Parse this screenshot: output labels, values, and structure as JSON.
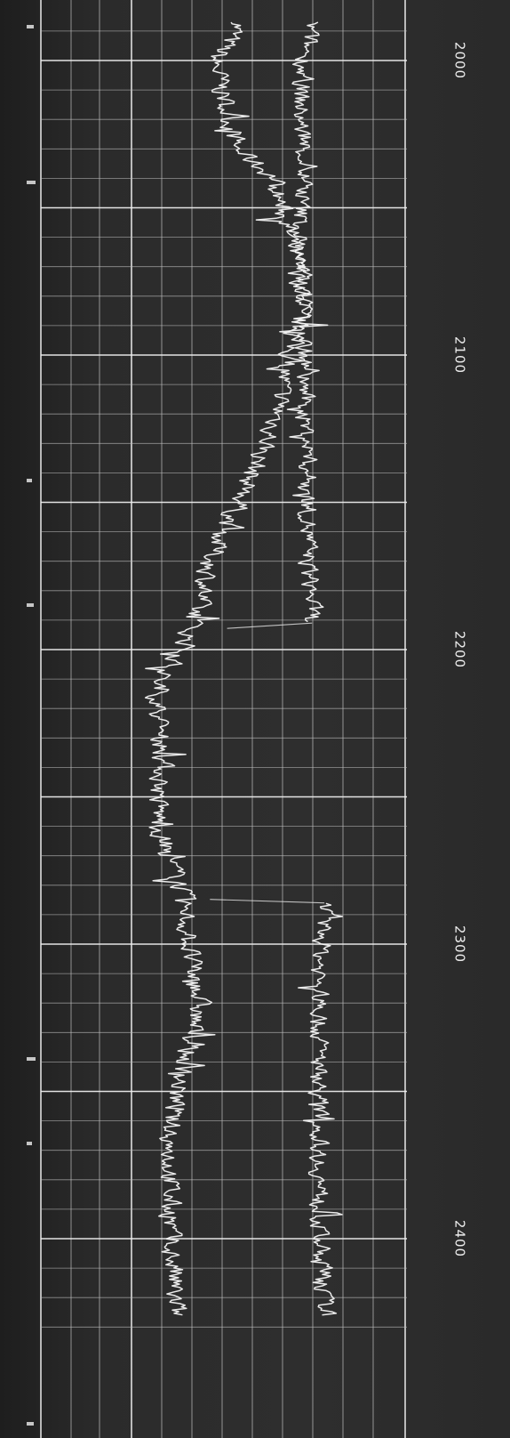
{
  "chart_data": {
    "type": "line",
    "title": "",
    "xlabel": "",
    "ylabel": "",
    "grid": true,
    "xlim": [
      2000,
      2425
    ],
    "x_ticks": [
      "2000",
      "2100",
      "2200",
      "2300",
      "2400"
    ],
    "series": [
      {
        "x": [
          1987,
          2000,
          2010,
          2020,
          2030,
          2040,
          2050,
          2060,
          2070,
          2080,
          2090,
          2100,
          2110,
          2120,
          2130,
          2140,
          2150,
          2160,
          2170,
          2180,
          2190,
          2200,
          2210,
          2220,
          2230,
          2240,
          2250,
          2260,
          2270,
          2280,
          2290,
          2300,
          2310,
          2320,
          2330,
          2340,
          2350,
          2360,
          2370,
          2380,
          2390,
          2400,
          2410,
          2420,
          2426
        ],
        "values": [
          0.55,
          0.48,
          0.5,
          0.52,
          0.54,
          0.64,
          0.66,
          0.68,
          0.7,
          0.72,
          0.7,
          0.68,
          0.66,
          0.65,
          0.62,
          0.58,
          0.55,
          0.5,
          0.47,
          0.45,
          0.42,
          0.4,
          0.33,
          0.33,
          0.34,
          0.34,
          0.33,
          0.33,
          0.35,
          0.39,
          0.4,
          0.41,
          0.42,
          0.44,
          0.42,
          0.4,
          0.38,
          0.36,
          0.36,
          0.36,
          0.36,
          0.36,
          0.37,
          0.37,
          0.38
        ],
        "noise": 0.04
      },
      {
        "x": [
          1987,
          2000,
          2010,
          2020,
          2030,
          2040,
          2050,
          2060,
          2070,
          2080,
          2090,
          2100,
          2110,
          2120,
          2130,
          2140,
          2150,
          2160,
          2170,
          2180,
          2190,
          2200,
          2210,
          2220,
          2230,
          2240,
          2250,
          2260,
          2270,
          2280,
          2290,
          2300,
          2310,
          2320,
          2330,
          2340,
          2350,
          2360,
          2370,
          2380,
          2390,
          2400,
          2410,
          2420,
          2426
        ],
        "values": [
          0.74,
          0.72,
          0.71,
          0.71,
          0.72,
          0.72,
          0.71,
          0.71,
          0.71,
          0.72,
          0.72,
          0.72,
          0.72,
          0.72,
          0.73,
          0.73,
          0.73,
          0.73,
          0.73,
          0.74,
          0.74,
          0.75,
          0.76,
          0.77,
          0.78,
          0.79,
          0.8,
          0.8,
          0.79,
          0.78,
          0.77,
          0.77,
          0.76,
          0.76,
          0.76,
          0.76,
          0.76,
          0.76,
          0.76,
          0.76,
          0.76,
          0.76,
          0.77,
          0.77,
          0.78
        ],
        "noise": 0.035,
        "gap": [
          2191,
          2286
        ]
      }
    ]
  }
}
